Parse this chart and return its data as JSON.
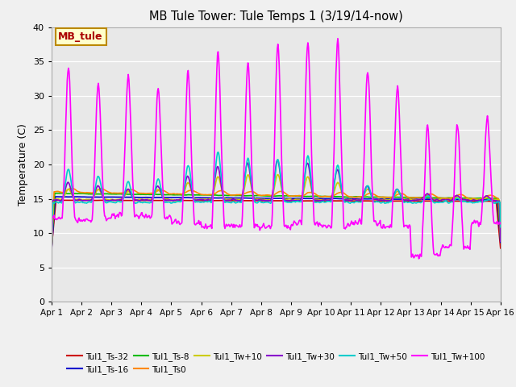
{
  "title": "MB Tule Tower: Tule Temps 1 (3/19/14-now)",
  "ylabel": "Temperature (C)",
  "ylim": [
    0,
    40
  ],
  "yticks": [
    0,
    5,
    10,
    15,
    20,
    25,
    30,
    35,
    40
  ],
  "xtick_labels": [
    "Apr 1",
    "Apr 2",
    "Apr 3",
    "Apr 4",
    "Apr 5",
    "Apr 6",
    "Apr 7",
    "Apr 8",
    "Apr 9",
    "Apr 10",
    "Apr 11",
    "Apr 12",
    "Apr 13",
    "Apr 14",
    "Apr 15",
    "Apr 16"
  ],
  "bg_color": "#e8e8e8",
  "fig_color": "#f0f0f0",
  "series_order": [
    "Tul1_Ts-32",
    "Tul1_Ts-16",
    "Tul1_Ts-8",
    "Tul1_Ts0",
    "Tul1_Tw+10",
    "Tul1_Tw+30",
    "Tul1_Tw+50",
    "Tul1_Tw+100"
  ],
  "series": {
    "Tul1_Ts-32": {
      "color": "#cc0000",
      "lw": 1.2
    },
    "Tul1_Ts-16": {
      "color": "#0000cc",
      "lw": 1.2
    },
    "Tul1_Ts-8": {
      "color": "#00bb00",
      "lw": 1.2
    },
    "Tul1_Ts0": {
      "color": "#ff8800",
      "lw": 1.2
    },
    "Tul1_Tw+10": {
      "color": "#cccc00",
      "lw": 1.2
    },
    "Tul1_Tw+30": {
      "color": "#8800cc",
      "lw": 1.2
    },
    "Tul1_Tw+50": {
      "color": "#00cccc",
      "lw": 1.2
    },
    "Tul1_Tw+100": {
      "color": "#ff00ff",
      "lw": 1.2
    }
  },
  "legend_box": {
    "label": "MB_tule",
    "facecolor": "#ffffcc",
    "edgecolor": "#bb8800",
    "textcolor": "#aa0000"
  },
  "tw100_peaks": [
    34.2,
    12.0,
    32.0,
    12.0,
    33.0,
    12.5,
    31.0,
    12.5,
    33.5,
    11.5,
    36.5,
    11.0,
    35.0,
    11.0,
    37.5,
    11.0,
    38.0,
    11.5,
    38.5,
    11.0,
    34.0,
    11.5,
    31.5,
    11.0,
    26.0,
    6.8,
    26.0,
    8.0,
    27.0,
    11.5
  ],
  "tw50_peaks": [
    19.5,
    14.5,
    18.5,
    14.5,
    17.5,
    14.5,
    18.0,
    14.5,
    20.0,
    14.5,
    22.0,
    14.5,
    21.0,
    14.5,
    21.0,
    14.5,
    21.5,
    14.5,
    20.0,
    14.5,
    17.0,
    14.5,
    16.5,
    14.5,
    15.5,
    14.5,
    15.0,
    14.5,
    15.0,
    14.5
  ],
  "tw30_peaks": [
    17.5,
    14.8,
    17.0,
    14.8,
    16.5,
    14.8,
    17.0,
    14.8,
    18.5,
    14.8,
    20.0,
    14.8,
    20.5,
    14.8,
    21.0,
    14.8,
    20.5,
    14.8,
    19.5,
    14.8,
    17.0,
    14.8,
    16.5,
    14.8,
    15.8,
    14.8,
    15.5,
    14.8,
    15.5,
    14.8
  ],
  "tw10_peaks": [
    16.5,
    14.9,
    16.5,
    14.9,
    16.2,
    14.9,
    16.5,
    14.9,
    17.5,
    14.9,
    18.5,
    14.9,
    18.8,
    14.9,
    18.8,
    14.9,
    18.5,
    14.9,
    17.5,
    14.9,
    16.5,
    14.9,
    16.2,
    14.9,
    15.5,
    14.9,
    15.2,
    14.9,
    15.2,
    14.9
  ]
}
